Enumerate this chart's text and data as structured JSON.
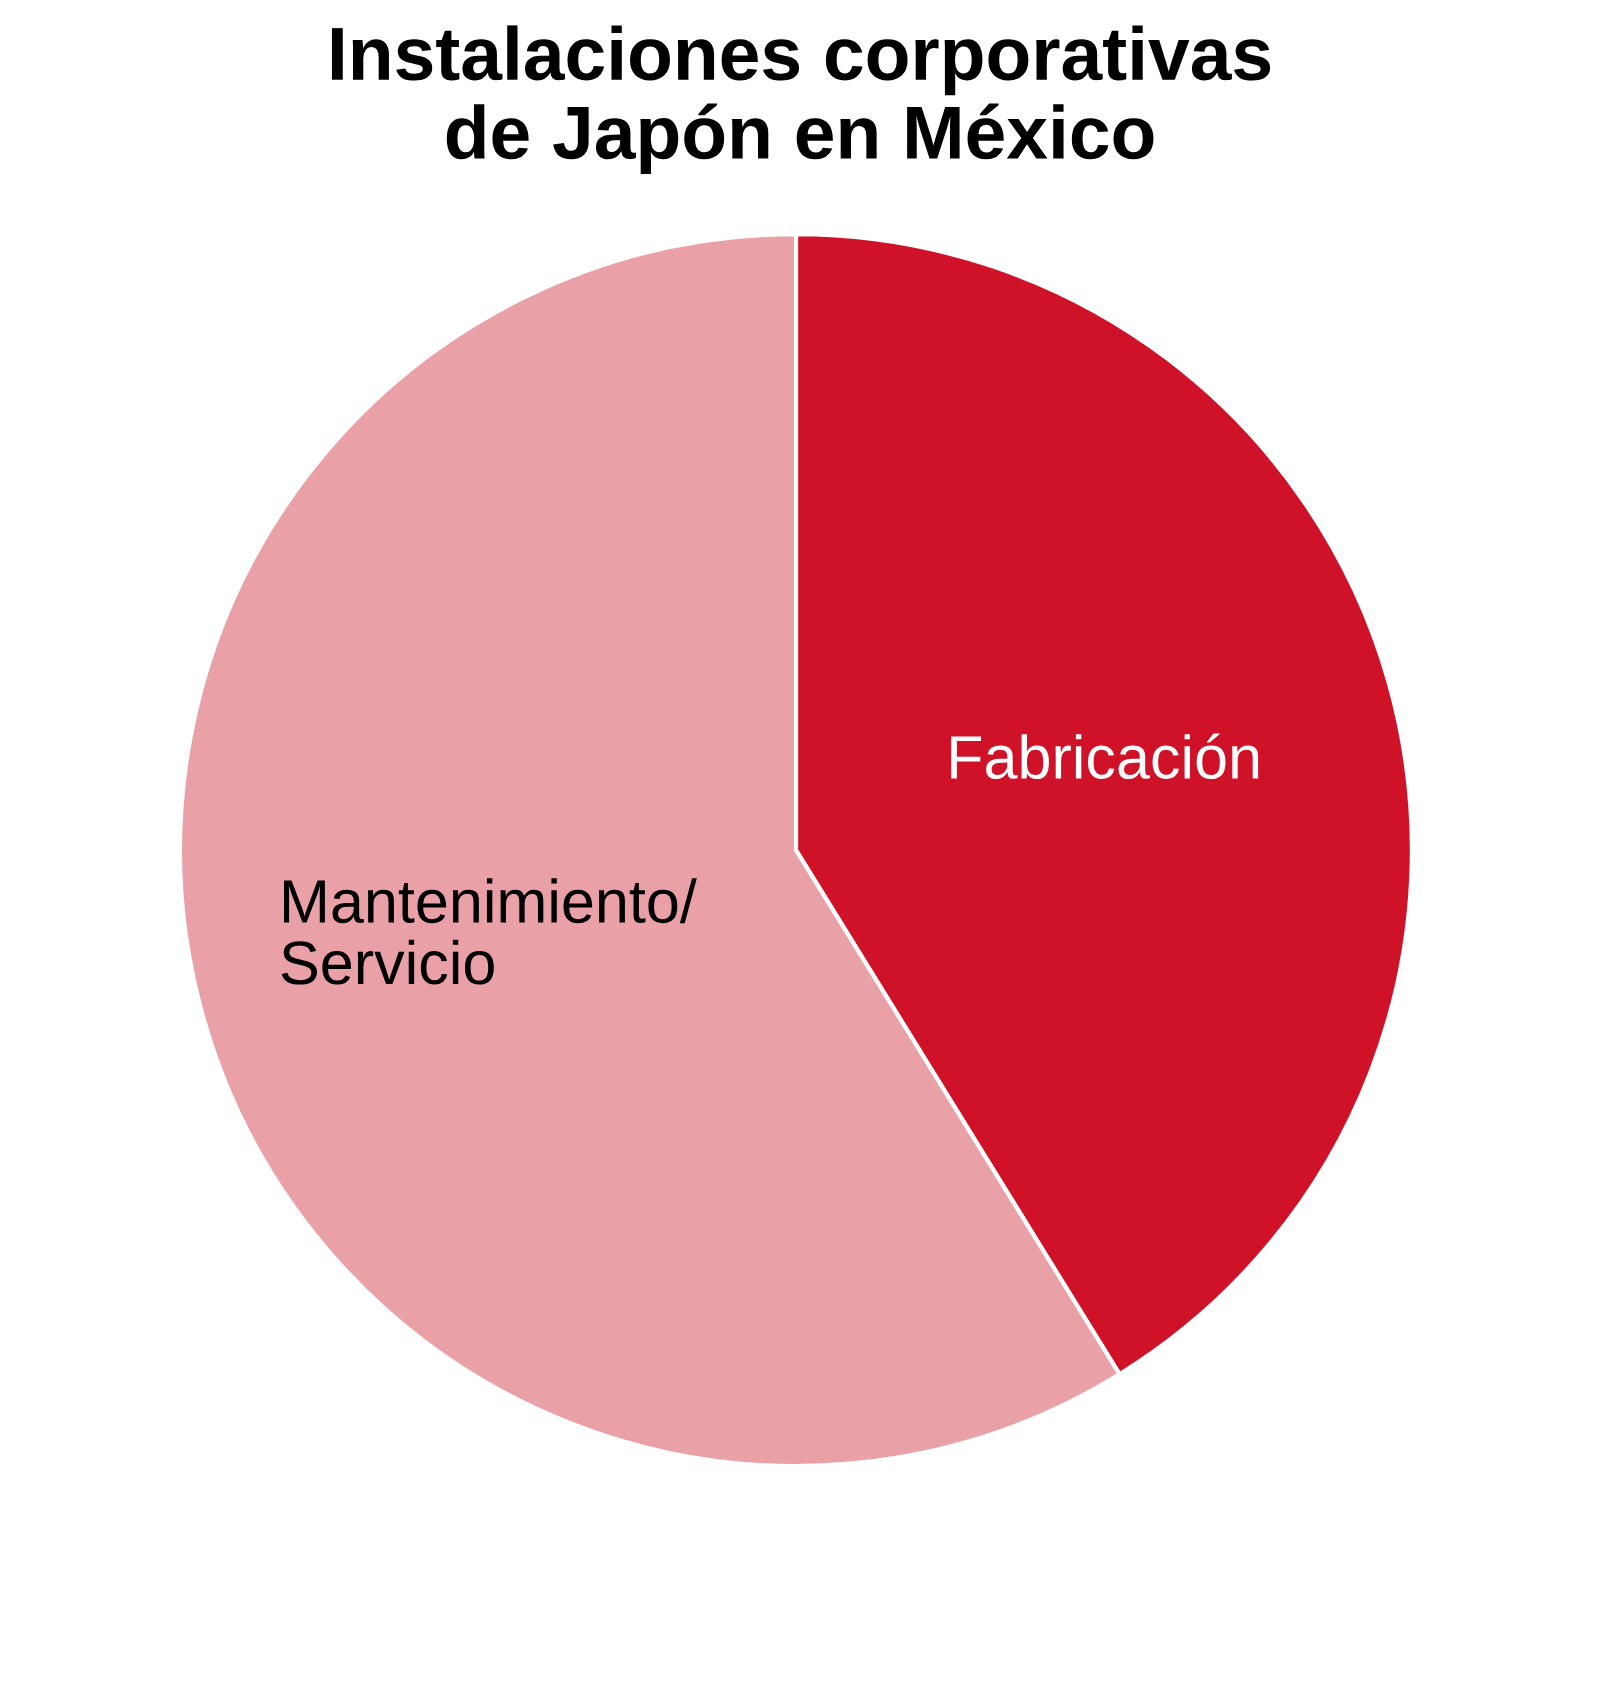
{
  "chart_data": {
    "type": "pie",
    "title": "Instalaciones corporativas\nde Japón en México",
    "categories": [
      "Fabricación",
      "Mantenimiento/\nServicio"
    ],
    "values": [
      41.2,
      58.8
    ],
    "colors": [
      "#cf1228",
      "#e9a0a6"
    ]
  }
}
